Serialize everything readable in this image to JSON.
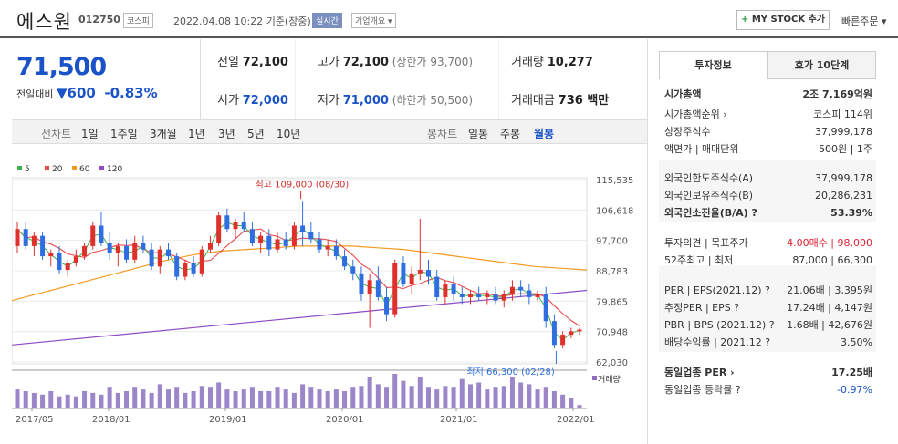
{
  "header": {
    "name": "에스원",
    "code": "012750",
    "market": "코스피",
    "datetime": "2022.04.08 10:22",
    "basis": "기준(장중)",
    "realtime": "실시간",
    "overview": "기업개요 ▾",
    "mystock": "+ MY STOCK 추가",
    "quick": "빠른주문 ▾"
  },
  "price": {
    "current": "71,500",
    "change_label": "전일대비",
    "change": "▼600",
    "change_pct": "-0.83%"
  },
  "info": {
    "prev_label": "전일",
    "prev": "72,100",
    "high_label": "고가",
    "high": "72,100",
    "upper_limit": "(상한가 93,700)",
    "volume_label": "거래량",
    "volume": "10,277",
    "open_label": "시가",
    "open": "72,000",
    "low_label": "저가",
    "low": "71,000",
    "lower_limit": "(하한가 50,500)",
    "amount_label": "거래대금",
    "amount": "736 백만"
  },
  "period_tabs": {
    "label": "선차트",
    "items": [
      "1일",
      "1주일",
      "3개월",
      "1년",
      "3년",
      "5년",
      "10년"
    ],
    "candle_label": "봉차트",
    "candle_items": [
      "일봉",
      "주봉",
      "월봉"
    ]
  },
  "right": {
    "tab1": "투자정보",
    "tab2": "호가 10단계",
    "rows": [
      {
        "k": "시가총액",
        "v": "2조 7,169억원"
      },
      {
        "k": "시가총액순위 ›",
        "v": "코스피 114위"
      },
      {
        "k": "상장주식수",
        "v": "37,999,178"
      },
      {
        "k": "액면가 | 매매단위",
        "v": "500원 | 1주"
      },
      {
        "k": "외국인한도주식수(A)",
        "v": "37,999,178"
      },
      {
        "k": "외국인보유주식수(B)",
        "v": "20,286,231"
      },
      {
        "k": "외국인소진율(B/A) ?",
        "v": "53.39%"
      },
      {
        "k": "투자의견 | 목표주가",
        "v": "4.00매수 | 98,000"
      },
      {
        "k": "52주최고 | 최저",
        "v": "87,000 | 66,300"
      },
      {
        "k": "PER | EPS(2021.12) ?",
        "v": "21.06배 | 3,395원"
      },
      {
        "k": "추정PER | EPS ?",
        "v": "17.24배 | 4,147원"
      },
      {
        "k": "PBR | BPS (2021.12) ?",
        "v": "1.68배 | 42,676원"
      },
      {
        "k": "배당수익률 | 2021.12 ?",
        "v": "3.50%"
      },
      {
        "k": "동일업종 PER ›",
        "v": "17.25배"
      },
      {
        "k": "동일업종 등락률 ?",
        "v": "-0.97%"
      }
    ]
  },
  "chart_data": {
    "type": "candlestick",
    "legend": [
      {
        "name": "5",
        "color": "#3bb34a"
      },
      {
        "name": "20",
        "color": "#e84c4c"
      },
      {
        "name": "60",
        "color": "#f39a1e"
      },
      {
        "name": "120",
        "color": "#8e4bc4"
      }
    ],
    "y_ticks": [
      "115,535",
      "106,618",
      "97,700",
      "88,783",
      "79,865",
      "70,948",
      "62,030"
    ],
    "y_min": 62030,
    "y_max": 115535,
    "x_labels": [
      "2017/05",
      "2018/01",
      "2019/01",
      "2020/01",
      "2021/01",
      "2022/01"
    ],
    "max_annotation": "최고 109,000 (08/30)",
    "min_annotation": "최저 66,300 (02/28)",
    "volume_label": "거래량",
    "candles": [
      [
        96,
        103,
        94,
        101
      ],
      [
        101,
        103,
        95,
        96
      ],
      [
        96,
        100,
        93,
        99
      ],
      [
        99,
        100,
        92,
        93
      ],
      [
        93,
        95,
        90,
        94
      ],
      [
        94,
        96,
        88,
        89
      ],
      [
        89,
        92,
        87,
        91
      ],
      [
        91,
        95,
        90,
        93
      ],
      [
        93,
        97,
        92,
        96
      ],
      [
        96,
        103,
        95,
        102
      ],
      [
        102,
        106,
        96,
        97
      ],
      [
        97,
        100,
        92,
        94
      ],
      [
        94,
        97,
        90,
        96
      ],
      [
        96,
        98,
        91,
        92
      ],
      [
        92,
        99,
        91,
        97
      ],
      [
        97,
        99,
        94,
        95
      ],
      [
        95,
        97,
        89,
        90
      ],
      [
        90,
        96,
        88,
        95
      ],
      [
        95,
        97,
        92,
        93
      ],
      [
        93,
        94,
        86,
        87
      ],
      [
        87,
        92,
        86,
        91
      ],
      [
        91,
        93,
        87,
        88
      ],
      [
        88,
        96,
        87,
        95
      ],
      [
        95,
        99,
        94,
        97
      ],
      [
        97,
        106,
        96,
        105
      ],
      [
        105,
        107,
        100,
        101
      ],
      [
        101,
        104,
        98,
        103
      ],
      [
        103,
        106,
        100,
        101
      ],
      [
        101,
        103,
        96,
        97
      ],
      [
        97,
        100,
        94,
        99
      ],
      [
        99,
        101,
        93,
        95
      ],
      [
        95,
        100,
        94,
        98
      ],
      [
        98,
        100,
        95,
        96
      ],
      [
        96,
        103,
        95,
        102
      ],
      [
        102,
        109,
        96,
        100
      ],
      [
        100,
        103,
        97,
        98
      ],
      [
        98,
        100,
        94,
        95
      ],
      [
        95,
        98,
        93,
        96
      ],
      [
        96,
        98,
        92,
        93
      ],
      [
        93,
        95,
        89,
        90
      ],
      [
        90,
        92,
        86,
        88
      ],
      [
        88,
        90,
        80,
        82
      ],
      [
        82,
        88,
        72,
        86
      ],
      [
        86,
        90,
        80,
        81
      ],
      [
        81,
        84,
        74,
        76
      ],
      [
        76,
        92,
        75,
        91
      ],
      [
        91,
        93,
        84,
        85
      ],
      [
        85,
        90,
        82,
        88
      ],
      [
        88,
        104,
        86,
        89
      ],
      [
        89,
        92,
        85,
        87
      ],
      [
        87,
        89,
        80,
        81
      ],
      [
        81,
        86,
        79,
        85
      ],
      [
        85,
        87,
        80,
        82
      ],
      [
        82,
        84,
        79,
        81
      ],
      [
        81,
        83,
        79,
        82
      ],
      [
        82,
        84,
        80,
        81
      ],
      [
        81,
        83,
        79,
        82
      ],
      [
        82,
        84,
        79,
        80
      ],
      [
        80,
        83,
        78,
        82
      ],
      [
        82,
        86,
        80,
        84
      ],
      [
        84,
        86,
        81,
        83
      ],
      [
        83,
        85,
        79,
        81
      ],
      [
        81,
        83,
        80,
        82
      ],
      [
        82,
        84,
        72,
        74
      ],
      [
        74,
        76,
        66,
        67
      ],
      [
        67,
        71,
        66,
        70
      ],
      [
        70,
        72,
        69,
        71
      ],
      [
        71,
        72,
        70,
        71.5
      ]
    ],
    "volumes": [
      0.55,
      0.5,
      0.45,
      0.4,
      0.5,
      0.35,
      0.4,
      0.35,
      0.5,
      0.45,
      0.4,
      0.6,
      0.45,
      0.5,
      0.6,
      0.55,
      0.45,
      0.7,
      0.55,
      0.6,
      0.45,
      0.5,
      0.65,
      0.6,
      0.75,
      0.55,
      0.5,
      0.55,
      0.6,
      0.5,
      0.5,
      0.6,
      0.55,
      0.45,
      0.7,
      0.6,
      0.55,
      0.5,
      0.55,
      0.5,
      0.6,
      0.65,
      0.9,
      0.7,
      0.6,
      1.0,
      0.8,
      0.65,
      0.9,
      0.6,
      0.55,
      0.65,
      0.6,
      0.85,
      0.7,
      0.75,
      0.55,
      0.6,
      0.65,
      0.9,
      0.75,
      0.7,
      0.55,
      0.6,
      0.5,
      0.4,
      0.3,
      0.1
    ]
  }
}
